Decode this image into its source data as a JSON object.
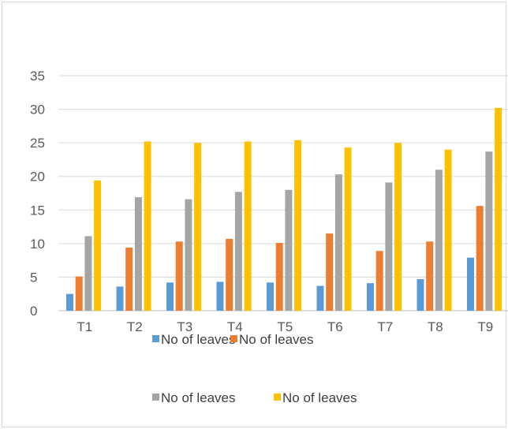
{
  "chart_data": {
    "type": "bar",
    "title": "",
    "xlabel": "",
    "ylabel": "",
    "categories": [
      "T1",
      "T2",
      "T3",
      "T4",
      "T5",
      "T6",
      "T7",
      "T8",
      "T9"
    ],
    "ylim": [
      0,
      35
    ],
    "yticks": [
      0,
      5,
      10,
      15,
      20,
      25,
      30,
      35
    ],
    "grid": true,
    "legend_position": "bottom",
    "series": [
      {
        "name": "No of leaves",
        "color": "#5b9bd5",
        "values": [
          2.5,
          3.6,
          4.2,
          4.3,
          4.2,
          3.7,
          4.1,
          4.7,
          7.9
        ]
      },
      {
        "name": "No of leaves",
        "color": "#ed7d31",
        "values": [
          5.1,
          9.4,
          10.3,
          10.7,
          10.1,
          11.5,
          8.9,
          10.3,
          15.6
        ]
      },
      {
        "name": "No of leaves",
        "color": "#a5a5a5",
        "values": [
          11.1,
          16.9,
          16.6,
          17.7,
          18.0,
          20.3,
          19.1,
          21.0,
          23.7
        ]
      },
      {
        "name": "No of leaves",
        "color": "#ffc000",
        "values": [
          19.4,
          25.2,
          25.0,
          25.2,
          25.4,
          24.3,
          25.0,
          24.0,
          30.2
        ]
      }
    ]
  }
}
